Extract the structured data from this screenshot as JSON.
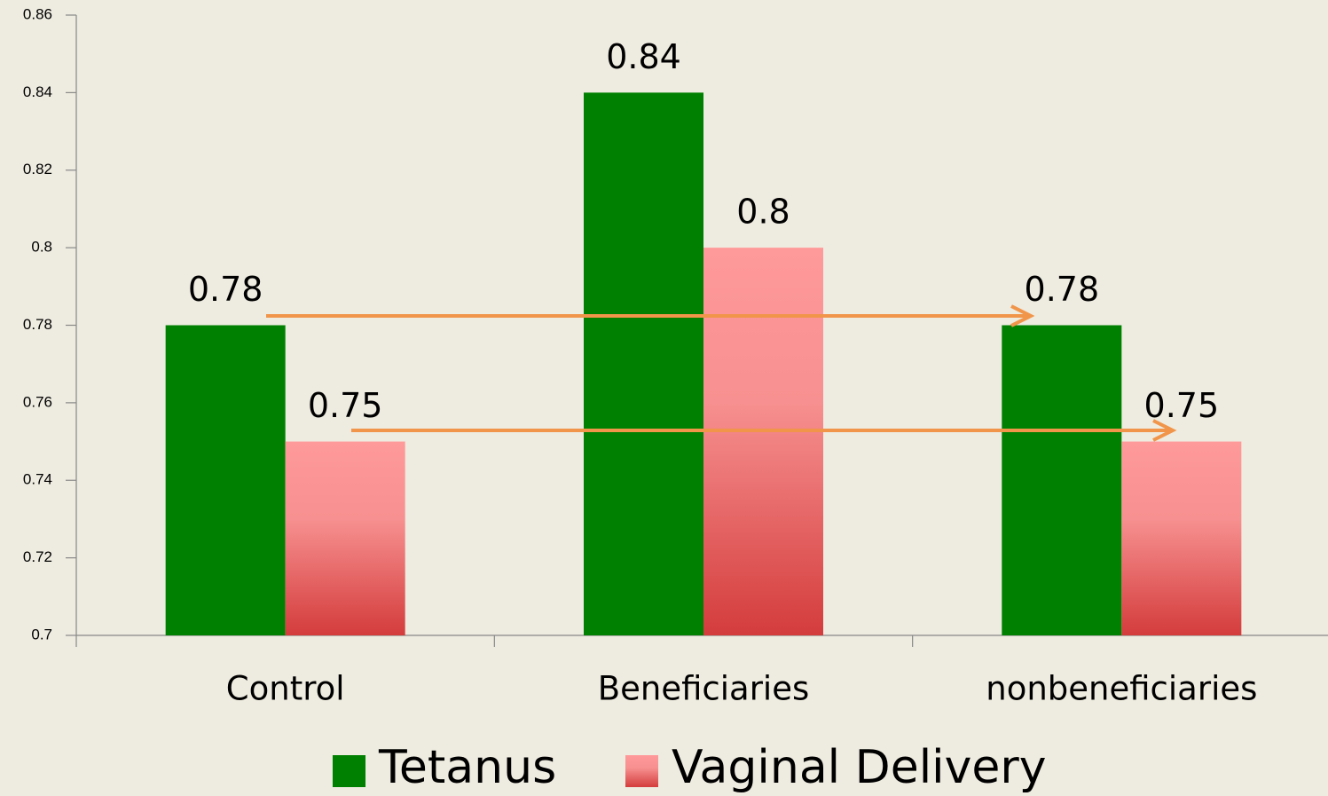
{
  "chart_data": {
    "type": "bar",
    "categories": [
      "Control",
      "Beneficiaries",
      "nonbeneficiaries"
    ],
    "series": [
      {
        "name": "Tetanus",
        "color": "#008000",
        "values": [
          0.78,
          0.84,
          0.78
        ]
      },
      {
        "name": "Vaginal Delivery",
        "color": "#ff9a9a",
        "values": [
          0.75,
          0.8,
          0.75
        ]
      }
    ],
    "ylim": [
      0.7,
      0.86
    ],
    "yticks": [
      0.7,
      0.72,
      0.74,
      0.76,
      0.78,
      0.8,
      0.82,
      0.84,
      0.86
    ],
    "grid": false,
    "legend": "bottom"
  }
}
